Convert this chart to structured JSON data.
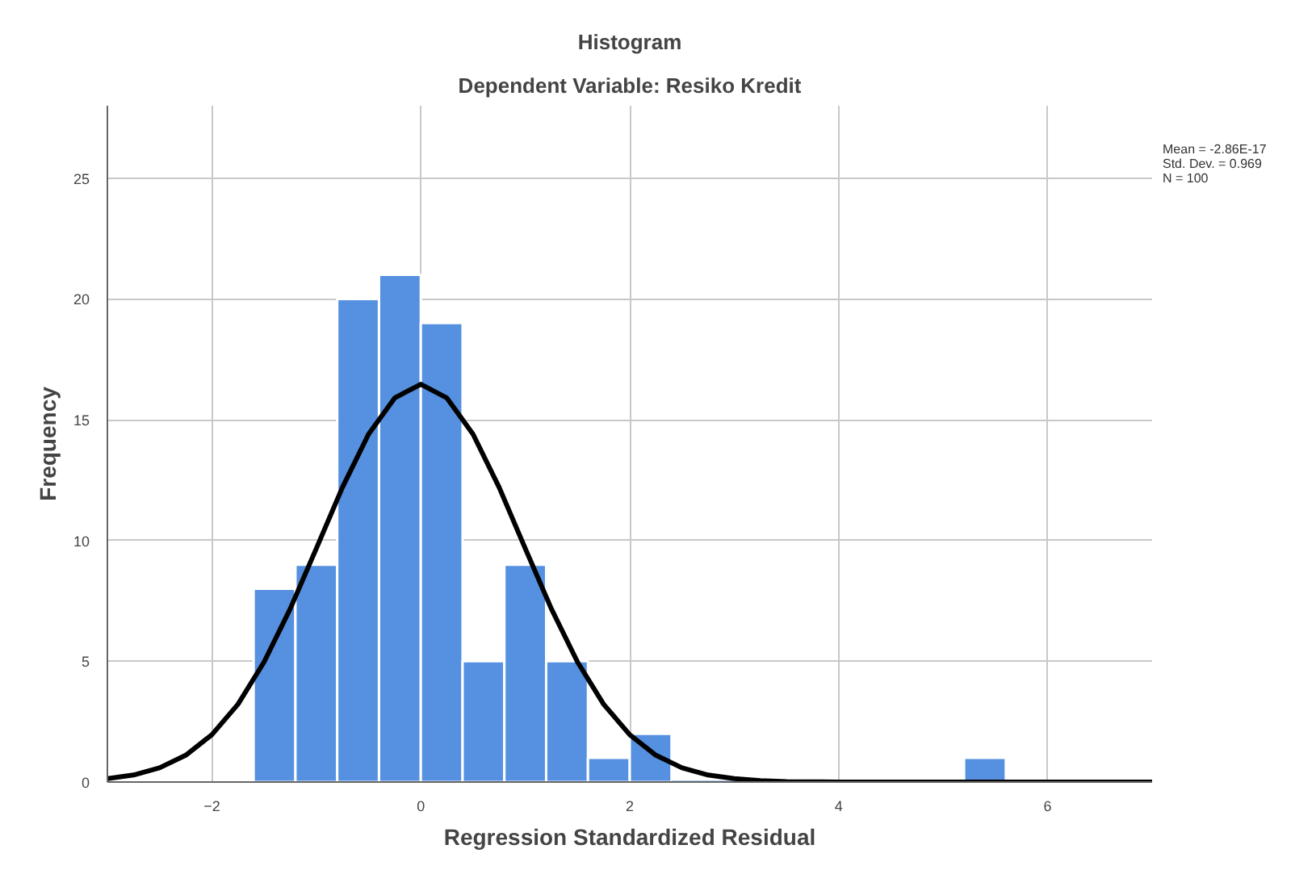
{
  "chart_data": {
    "type": "histogram",
    "title": "Histogram",
    "subtitle": "Dependent Variable: Resiko Kredit",
    "xlabel": "Regression Standardized Residual",
    "ylabel": "Frequency",
    "bins": [
      -1.6,
      -1.2,
      -0.8,
      -0.4,
      0,
      0.4,
      0.8,
      1.2,
      1.6,
      2.0,
      2.4,
      2.8,
      3.2,
      3.6,
      4.0,
      4.4,
      4.8,
      5.2,
      5.6
    ],
    "values": [
      8,
      9,
      20,
      21,
      19,
      5,
      9,
      5,
      1,
      2,
      0,
      0,
      0,
      0,
      0,
      0,
      0,
      1
    ],
    "color": "#5591e0",
    "series": [
      {
        "type": "line",
        "color": "#000000",
        "x": [
          -3,
          -2.75,
          -2.5,
          -2.25,
          -2,
          -1.75,
          -1.5,
          -1.25,
          -1,
          -0.75,
          -0.5,
          -0.25,
          0,
          0.25,
          0.5,
          0.75,
          1,
          1.25,
          1.5,
          1.75,
          2,
          2.25,
          2.5,
          2.75,
          3,
          3.25,
          3.5,
          4,
          4.5,
          5,
          5.5,
          6,
          6.5,
          7
        ],
        "values": [
          0.14,
          0.29,
          0.59,
          1.11,
          1.96,
          3.22,
          4.97,
          7.17,
          9.67,
          12.2,
          14.4,
          15.9,
          16.47,
          15.9,
          14.4,
          12.2,
          9.67,
          7.17,
          4.97,
          3.22,
          1.96,
          1.11,
          0.59,
          0.29,
          0.14,
          0.06,
          0.02,
          0,
          0,
          0,
          0,
          0,
          0,
          0
        ]
      }
    ],
    "xlim": [
      -3,
      7
    ],
    "xticks": [
      -2,
      0,
      2,
      4,
      6
    ],
    "ylim": [
      0,
      28
    ],
    "yticks": [
      0,
      5,
      10,
      15,
      20,
      25
    ],
    "grid": true,
    "annotations": [
      "Mean = -2.86E-17",
      "Std. Dev. = 0.969",
      "N = 100"
    ]
  }
}
